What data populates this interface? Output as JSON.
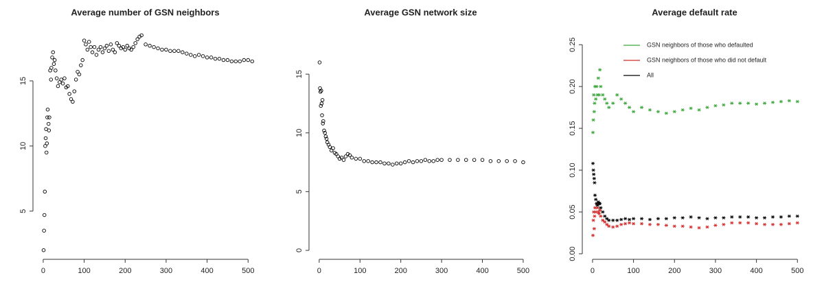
{
  "chart_data": [
    {
      "type": "scatter",
      "title": "Average number of GSN neighbors",
      "marker": "circle",
      "xlim": [
        -25,
        523
      ],
      "ylim": [
        1.3,
        19.0
      ],
      "xticks": [
        0,
        100,
        200,
        300,
        400,
        500
      ],
      "yticks": [
        5,
        10,
        15
      ],
      "series": [
        {
          "color": "#000000",
          "x": [
            1,
            2,
            3,
            4,
            5,
            6,
            7,
            8,
            9,
            10,
            11,
            13,
            14,
            15,
            17,
            19,
            20,
            22,
            24,
            26,
            28,
            30,
            33,
            36,
            40,
            44,
            48,
            52,
            56,
            60,
            64,
            68,
            72,
            76,
            80,
            84,
            88,
            92,
            96,
            100,
            104,
            108,
            112,
            116,
            120,
            125,
            130,
            135,
            140,
            145,
            150,
            155,
            160,
            165,
            170,
            175,
            180,
            185,
            190,
            195,
            200,
            205,
            210,
            215,
            220,
            225,
            230,
            235,
            240,
            250,
            260,
            270,
            280,
            290,
            300,
            310,
            320,
            330,
            340,
            350,
            360,
            370,
            380,
            390,
            400,
            410,
            420,
            430,
            440,
            450,
            460,
            470,
            480,
            490,
            500,
            510
          ],
          "values": [
            2.0,
            3.5,
            4.7,
            6.5,
            10.0,
            10.6,
            11.3,
            9.5,
            10.2,
            12.2,
            12.8,
            11.7,
            11.2,
            12.2,
            15.8,
            15.1,
            16.0,
            16.8,
            17.2,
            16.3,
            16.6,
            15.8,
            15.2,
            14.6,
            14.9,
            15.1,
            14.8,
            15.2,
            14.5,
            14.6,
            14.0,
            13.6,
            13.4,
            14.2,
            15.1,
            15.7,
            15.5,
            16.2,
            16.6,
            18.1,
            17.8,
            17.4,
            18.0,
            17.6,
            17.2,
            17.6,
            17.0,
            17.4,
            17.6,
            17.2,
            17.5,
            17.7,
            17.3,
            17.8,
            17.4,
            17.2,
            17.9,
            17.7,
            17.5,
            17.6,
            17.4,
            17.7,
            17.5,
            17.4,
            17.6,
            17.9,
            18.2,
            18.4,
            18.5,
            17.8,
            17.7,
            17.6,
            17.5,
            17.4,
            17.4,
            17.3,
            17.3,
            17.3,
            17.2,
            17.1,
            17.0,
            16.9,
            17.0,
            16.9,
            16.8,
            16.8,
            16.7,
            16.7,
            16.6,
            16.6,
            16.5,
            16.5,
            16.5,
            16.6,
            16.6,
            16.5
          ]
        }
      ]
    },
    {
      "type": "scatter",
      "title": "Average GSN network size",
      "marker": "circle",
      "xlim": [
        -25,
        522
      ],
      "ylim": [
        -0.76,
        18.86
      ],
      "xticks": [
        0,
        100,
        200,
        300,
        400,
        500
      ],
      "yticks": [
        0,
        5,
        10,
        15
      ],
      "series": [
        {
          "color": "#000000",
          "x": [
            1,
            2,
            3,
            4,
            5,
            6,
            7,
            8,
            9,
            10,
            12,
            14,
            16,
            18,
            20,
            23,
            26,
            30,
            34,
            38,
            42,
            46,
            50,
            55,
            60,
            65,
            70,
            75,
            80,
            90,
            100,
            110,
            120,
            130,
            140,
            150,
            160,
            170,
            180,
            190,
            200,
            210,
            220,
            230,
            240,
            250,
            260,
            270,
            280,
            290,
            300,
            320,
            340,
            360,
            380,
            400,
            420,
            440,
            460,
            480,
            500
          ],
          "values": [
            16.0,
            13.8,
            13.5,
            12.3,
            13.6,
            12.5,
            11.5,
            12.8,
            10.8,
            11.0,
            10.2,
            10.0,
            9.7,
            9.5,
            9.2,
            9.0,
            8.8,
            8.5,
            8.7,
            8.3,
            8.2,
            8.0,
            7.8,
            7.9,
            7.7,
            8.0,
            8.2,
            8.1,
            7.9,
            7.8,
            7.8,
            7.6,
            7.6,
            7.5,
            7.5,
            7.5,
            7.4,
            7.4,
            7.3,
            7.4,
            7.4,
            7.5,
            7.6,
            7.5,
            7.6,
            7.6,
            7.7,
            7.6,
            7.6,
            7.7,
            7.7,
            7.7,
            7.7,
            7.7,
            7.7,
            7.7,
            7.6,
            7.6,
            7.6,
            7.6,
            7.5
          ]
        }
      ]
    },
    {
      "type": "scatter",
      "title": "Average default rate",
      "marker": "star",
      "legend": "top-center",
      "xlim": [
        -25,
        523
      ],
      "ylim": [
        -0.0066,
        0.269
      ],
      "xticks": [
        0,
        100,
        200,
        300,
        400,
        500
      ],
      "yticks": [
        {
          "value": 0,
          "label": "0.00"
        },
        0.05,
        {
          "value": 0.1,
          "label": "0.10"
        },
        0.15,
        {
          "value": 0.2,
          "label": "0.20"
        },
        0.25
      ],
      "series": [
        {
          "name": "GSN neighbors of those who defaulted",
          "color": "#3aa63a",
          "x": [
            1,
            2,
            3,
            4,
            5,
            6,
            8,
            10,
            12,
            14,
            16,
            18,
            20,
            25,
            30,
            35,
            40,
            50,
            60,
            70,
            80,
            90,
            100,
            120,
            140,
            160,
            180,
            200,
            220,
            240,
            260,
            280,
            300,
            320,
            340,
            360,
            380,
            400,
            420,
            440,
            460,
            480,
            500
          ],
          "values": [
            0.145,
            0.16,
            0.19,
            0.17,
            0.18,
            0.2,
            0.185,
            0.2,
            0.19,
            0.21,
            0.19,
            0.22,
            0.2,
            0.19,
            0.185,
            0.18,
            0.175,
            0.18,
            0.19,
            0.185,
            0.18,
            0.175,
            0.17,
            0.175,
            0.172,
            0.17,
            0.168,
            0.17,
            0.172,
            0.174,
            0.172,
            0.175,
            0.177,
            0.178,
            0.18,
            0.18,
            0.18,
            0.179,
            0.18,
            0.181,
            0.182,
            0.183,
            0.182
          ]
        },
        {
          "name": "GSN neighbors of those who did not default",
          "color": "#d42a2a",
          "x": [
            1,
            2,
            3,
            4,
            5,
            6,
            8,
            10,
            12,
            14,
            16,
            18,
            20,
            25,
            30,
            35,
            40,
            50,
            60,
            70,
            80,
            90,
            100,
            120,
            140,
            160,
            180,
            200,
            220,
            240,
            260,
            280,
            300,
            320,
            340,
            360,
            380,
            400,
            420,
            440,
            460,
            480,
            500
          ],
          "values": [
            0.022,
            0.04,
            0.05,
            0.03,
            0.045,
            0.055,
            0.05,
            0.06,
            0.055,
            0.05,
            0.048,
            0.052,
            0.045,
            0.04,
            0.038,
            0.035,
            0.033,
            0.032,
            0.033,
            0.035,
            0.036,
            0.037,
            0.036,
            0.036,
            0.035,
            0.035,
            0.034,
            0.033,
            0.033,
            0.032,
            0.031,
            0.032,
            0.034,
            0.035,
            0.037,
            0.037,
            0.037,
            0.036,
            0.035,
            0.035,
            0.035,
            0.036,
            0.037
          ]
        },
        {
          "name": "All",
          "color": "#000000",
          "x": [
            1,
            2,
            3,
            4,
            5,
            6,
            8,
            10,
            12,
            14,
            16,
            18,
            20,
            25,
            30,
            35,
            40,
            50,
            60,
            70,
            80,
            90,
            100,
            120,
            140,
            160,
            180,
            200,
            220,
            240,
            260,
            280,
            300,
            320,
            340,
            360,
            380,
            400,
            420,
            440,
            460,
            480,
            500
          ],
          "values": [
            0.108,
            0.1,
            0.095,
            0.09,
            0.085,
            0.07,
            0.065,
            0.06,
            0.058,
            0.062,
            0.06,
            0.06,
            0.055,
            0.05,
            0.045,
            0.042,
            0.04,
            0.04,
            0.04,
            0.041,
            0.042,
            0.041,
            0.042,
            0.042,
            0.041,
            0.042,
            0.042,
            0.043,
            0.043,
            0.044,
            0.043,
            0.042,
            0.043,
            0.043,
            0.044,
            0.044,
            0.044,
            0.043,
            0.043,
            0.044,
            0.044,
            0.045,
            0.045
          ]
        }
      ]
    }
  ]
}
